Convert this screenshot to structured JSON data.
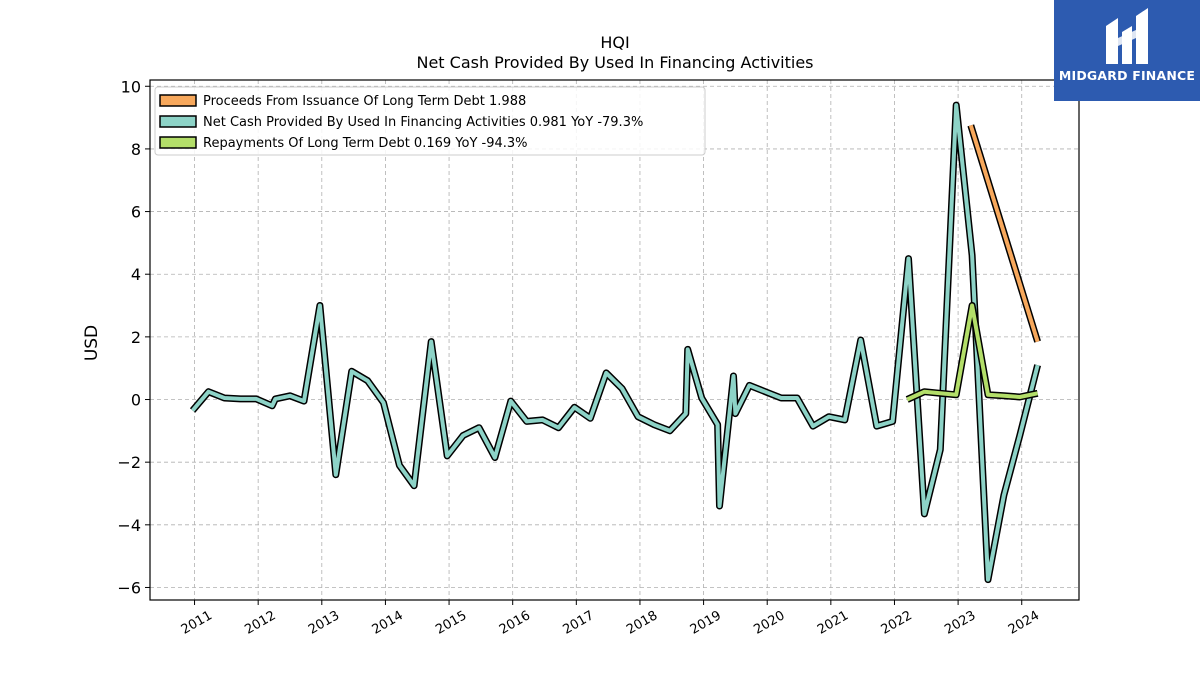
{
  "brand": {
    "name": "MIDGARD FINANCE",
    "color": "#2d5bb0",
    "icon": "midgard-logo-icon"
  },
  "chart_data": {
    "type": "line",
    "title": "HQI",
    "subtitle": "Net Cash Provided By Used In Financing Activities",
    "xlabel": "",
    "ylabel": "USD",
    "ylim": [
      -6.4,
      10.2
    ],
    "xlim": [
      2010.3,
      2024.9
    ],
    "x_ticks": [
      "2011",
      "2012",
      "2013",
      "2014",
      "2015",
      "2016",
      "2017",
      "2018",
      "2019",
      "2020",
      "2021",
      "2022",
      "2023",
      "2024"
    ],
    "y_ticks": [
      -6,
      -4,
      -2,
      0,
      2,
      4,
      6,
      8,
      10
    ],
    "grid": true,
    "legend_position": "top-left",
    "series": [
      {
        "name": "Proceeds From Issuance Of Long Term Debt",
        "legend_label": "Proceeds From Issuance Of Long Term Debt  1.988",
        "color": "#f7a85c",
        "x": [
          2023.2,
          2024.25
        ],
        "y": [
          8.75,
          1.85
        ]
      },
      {
        "name": "Net Cash Provided By Used In Financing Activities",
        "legend_label": "Net Cash Provided By Used In Financing Activities  0.981 YoY -79.3%",
        "color": "#8dd3c7",
        "x": [
          2010.97,
          2011.22,
          2011.47,
          2011.72,
          2011.97,
          2012.22,
          2012.27,
          2012.5,
          2012.72,
          2012.97,
          2013.22,
          2013.47,
          2013.72,
          2013.97,
          2014.22,
          2014.45,
          2014.72,
          2014.97,
          2015.22,
          2015.47,
          2015.72,
          2015.97,
          2016.22,
          2016.47,
          2016.72,
          2016.97,
          2017.22,
          2017.47,
          2017.72,
          2017.97,
          2018.22,
          2018.47,
          2018.72,
          2018.75,
          2018.97,
          2019.22,
          2019.25,
          2019.47,
          2019.5,
          2019.72,
          2019.97,
          2020.22,
          2020.47,
          2020.72,
          2020.97,
          2021.22,
          2021.47,
          2021.72,
          2021.97,
          2022.22,
          2022.47,
          2022.72,
          2022.97,
          2023.22,
          2023.47,
          2023.72,
          2023.97,
          2024.25
        ],
        "y": [
          -0.35,
          0.25,
          0.05,
          0.02,
          0.02,
          -0.2,
          0.02,
          0.12,
          -0.05,
          3.0,
          -2.4,
          0.9,
          0.6,
          -0.1,
          -2.1,
          -2.75,
          1.85,
          -1.8,
          -1.15,
          -0.9,
          -1.85,
          -0.05,
          -0.7,
          -0.65,
          -0.9,
          -0.25,
          -0.6,
          0.85,
          0.35,
          -0.55,
          -0.8,
          -1.0,
          -0.45,
          1.6,
          0.05,
          -0.8,
          -3.4,
          0.75,
          -0.45,
          0.45,
          0.25,
          0.05,
          0.05,
          -0.85,
          -0.55,
          -0.65,
          1.9,
          -0.85,
          -0.7,
          4.5,
          -3.65,
          -1.6,
          9.4,
          4.6,
          -5.75,
          -3.05,
          -1.15,
          1.1
        ]
      },
      {
        "name": "Repayments Of Long Term Debt",
        "legend_label": "Repayments Of Long Term Debt  0.169 YoY -94.3%",
        "color": "#b3de69",
        "x": [
          2022.2,
          2022.47,
          2022.72,
          2022.97,
          2023.22,
          2023.47,
          2023.72,
          2023.97,
          2024.25
        ],
        "y": [
          0.0,
          0.25,
          0.2,
          0.15,
          3.0,
          0.15,
          0.12,
          0.08,
          0.2
        ]
      }
    ]
  }
}
